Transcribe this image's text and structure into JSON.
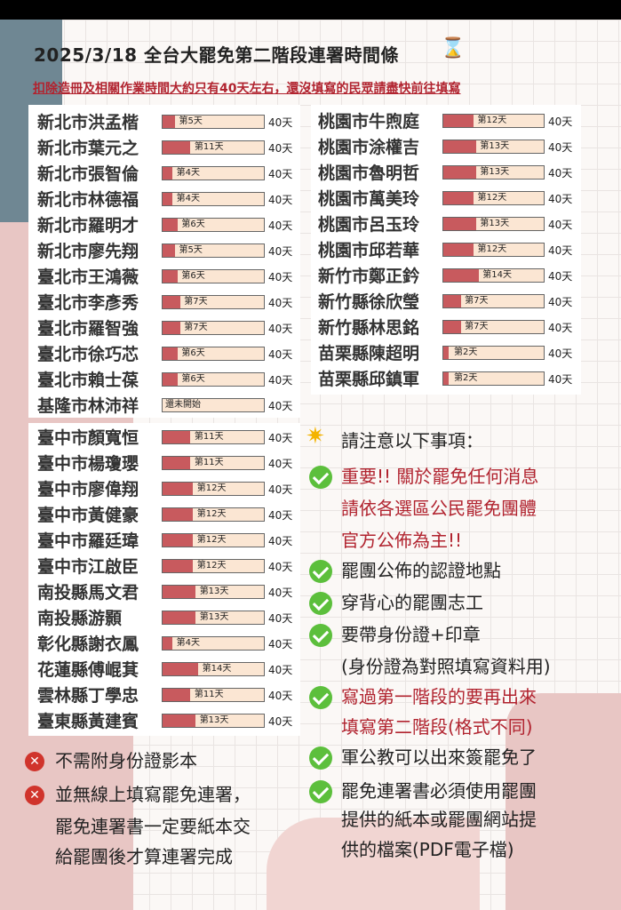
{
  "header": {
    "title": "2025/3/18 全台大罷免第二階段連署時間條",
    "hourglass_icon": "hourglass-icon",
    "subtitle": "扣除造冊及相關作業時間大約只有40天左右，還沒填寫的民眾請盡快前往填寫"
  },
  "colors": {
    "accent_red": "#b1232f",
    "bar_fill": "#c85a5e",
    "bar_bg": "#fbe6d3",
    "check_green": "#5cbf3c"
  },
  "left_group1": [
    {
      "name": "新北市洪孟楷",
      "label": "第5天",
      "day": 5,
      "max": "40天"
    },
    {
      "name": "新北市葉元之",
      "label": "第11天",
      "day": 11,
      "max": "40天"
    },
    {
      "name": "新北市張智倫",
      "label": "第4天",
      "day": 4,
      "max": "40天"
    },
    {
      "name": "新北市林德福",
      "label": "第4天",
      "day": 4,
      "max": "40天"
    },
    {
      "name": "新北市羅明才",
      "label": "第6天",
      "day": 6,
      "max": "40天"
    },
    {
      "name": "新北市廖先翔",
      "label": "第5天",
      "day": 5,
      "max": "40天"
    },
    {
      "name": "臺北市王鴻薇",
      "label": "第6天",
      "day": 6,
      "max": "40天"
    },
    {
      "name": "臺北市李彥秀",
      "label": "第7天",
      "day": 7,
      "max": "40天"
    },
    {
      "name": "臺北市羅智強",
      "label": "第7天",
      "day": 7,
      "max": "40天"
    },
    {
      "name": "臺北市徐巧芯",
      "label": "第6天",
      "day": 6,
      "max": "40天"
    },
    {
      "name": "臺北市賴士葆",
      "label": "第6天",
      "day": 6,
      "max": "40天"
    },
    {
      "name": "基隆市林沛祥",
      "label": "還未開始",
      "day": 0,
      "max": "40天"
    }
  ],
  "left_group2": [
    {
      "name": "臺中市顏寬恒",
      "label": "第11天",
      "day": 11,
      "max": "40天"
    },
    {
      "name": "臺中市楊瓊瓔",
      "label": "第11天",
      "day": 11,
      "max": "40天"
    },
    {
      "name": "臺中市廖偉翔",
      "label": "第12天",
      "day": 12,
      "max": "40天"
    },
    {
      "name": "臺中市黃健豪",
      "label": "第12天",
      "day": 12,
      "max": "40天"
    },
    {
      "name": "臺中市羅廷瑋",
      "label": "第12天",
      "day": 12,
      "max": "40天"
    },
    {
      "name": "臺中市江啟臣",
      "label": "第12天",
      "day": 12,
      "max": "40天"
    },
    {
      "name": "南投縣馬文君",
      "label": "第13天",
      "day": 13,
      "max": "40天"
    },
    {
      "name": "南投縣游顥",
      "label": "第13天",
      "day": 13,
      "max": "40天"
    },
    {
      "name": "彰化縣謝衣鳳",
      "label": "第4天",
      "day": 4,
      "max": "40天"
    },
    {
      "name": "花蓮縣傅崐萁",
      "label": "第14天",
      "day": 14,
      "max": "40天"
    },
    {
      "name": "雲林縣丁學忠",
      "label": "第11天",
      "day": 11,
      "max": "40天"
    },
    {
      "name": "臺東縣黃建賓",
      "label": "第13天",
      "day": 13,
      "max": "40天"
    }
  ],
  "right_group": [
    {
      "name": "桃園市牛煦庭",
      "label": "第12天",
      "day": 12,
      "max": "40天"
    },
    {
      "name": "桃園市涂權吉",
      "label": "第13天",
      "day": 13,
      "max": "40天"
    },
    {
      "name": "桃園市魯明哲",
      "label": "第13天",
      "day": 13,
      "max": "40天"
    },
    {
      "name": "桃園市萬美玲",
      "label": "第12天",
      "day": 12,
      "max": "40天"
    },
    {
      "name": "桃園市呂玉玲",
      "label": "第13天",
      "day": 13,
      "max": "40天"
    },
    {
      "name": "桃園市邱若華",
      "label": "第12天",
      "day": 12,
      "max": "40天"
    },
    {
      "name": "新竹市鄭正鈐",
      "label": "第14天",
      "day": 14,
      "max": "40天"
    },
    {
      "name": "新竹縣徐欣瑩",
      "label": "第7天",
      "day": 7,
      "max": "40天"
    },
    {
      "name": "新竹縣林思銘",
      "label": "第7天",
      "day": 7,
      "max": "40天"
    },
    {
      "name": "苗栗縣陳超明",
      "label": "第2天",
      "day": 2,
      "max": "40天"
    },
    {
      "name": "苗栗縣邱鎮軍",
      "label": "第2天",
      "day": 2,
      "max": "40天"
    }
  ],
  "notes": {
    "heading": "請注意以下事項：",
    "star_icon": "star-icon",
    "important_1": "重要!! 關於罷免任何消息",
    "important_2": "請依各選區公民罷免團體",
    "important_3": "官方公佈為主!!",
    "item1": "罷團公佈的認證地點",
    "item2": "穿背心的罷團志工",
    "item3_1": "要帶身份證+印章",
    "item3_2": "(身份證為對照填寫資料用)",
    "item4_1": "寫過第一階段的要再出來",
    "item4_2": "填寫第二階段(格式不同)",
    "item5": "軍公教可以出來簽罷免了",
    "item6_1": "罷免連署書必須使用罷團",
    "item6_2": "提供的紙本或罷團網站提",
    "item6_3": "供的檔案(PDF電子檔)",
    "x1": "不需附身份證影本",
    "x2_1": "並無線上填寫罷免連署，",
    "x2_2": "罷免連署書一定要紙本交",
    "x2_3": "給罷團後才算連署完成"
  }
}
